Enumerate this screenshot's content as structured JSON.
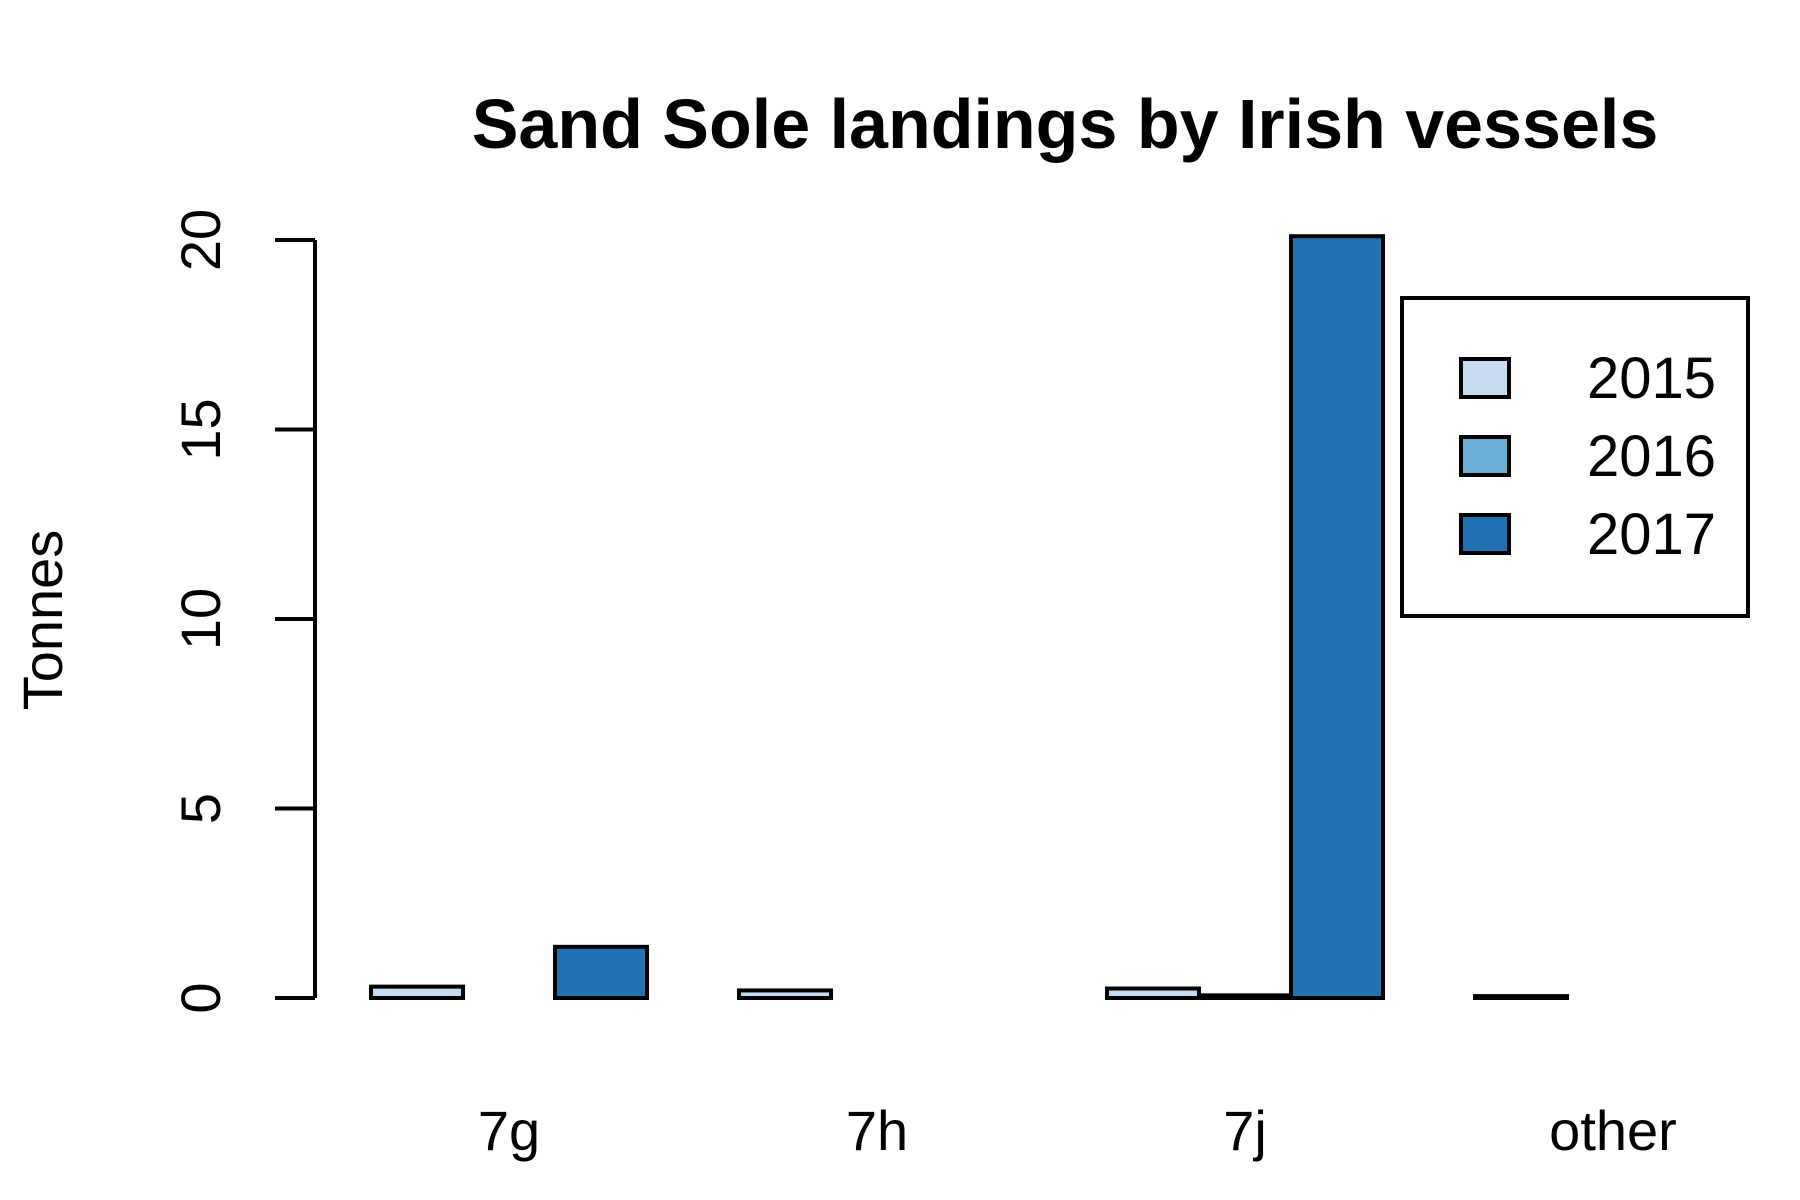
{
  "chart_data": {
    "type": "bar",
    "title": "Sand Sole landings by Irish vessels",
    "xlabel": "",
    "ylabel": "Tonnes",
    "categories": [
      "7g",
      "7h",
      "7j",
      "other"
    ],
    "series": [
      {
        "name": "2015",
        "color": "#c6dbef",
        "values": [
          0.3,
          0.2,
          0.25,
          0.05
        ]
      },
      {
        "name": "2016",
        "color": "#6baed6",
        "values": [
          0.0,
          0.0,
          0.07,
          0.0
        ]
      },
      {
        "name": "2017",
        "color": "#2171b5",
        "values": [
          1.35,
          0.0,
          20.1,
          0.0
        ]
      }
    ],
    "ylim": [
      0,
      20
    ],
    "yticks": [
      "0",
      "5",
      "10",
      "15",
      "20"
    ],
    "legend_position": "top-right",
    "grid": false
  }
}
